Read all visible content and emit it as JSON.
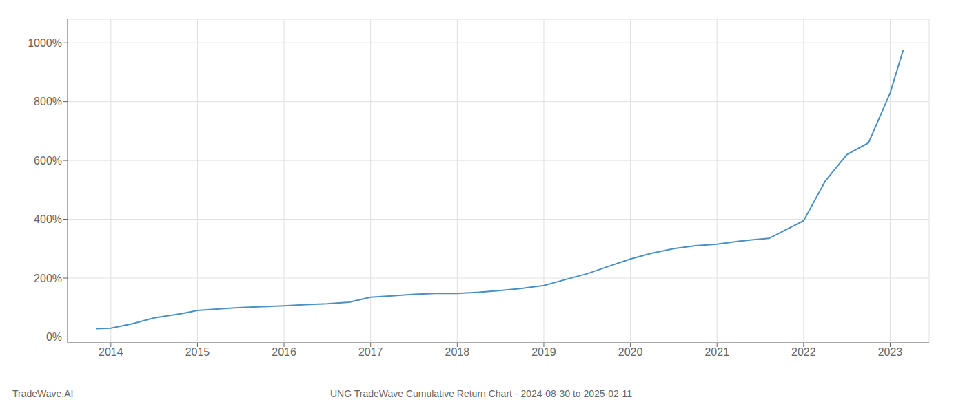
{
  "chart_data": {
    "type": "line",
    "title": "UNG TradeWave Cumulative Return Chart - 2024-08-30 to 2025-02-11",
    "annotations": [
      "TradeWave.AI"
    ],
    "color": "#4a90c4",
    "x": [
      2013.83,
      2014.0,
      2014.25,
      2014.5,
      2014.83,
      2015.0,
      2015.25,
      2015.5,
      2016.0,
      2016.25,
      2016.5,
      2016.75,
      2017.0,
      2017.25,
      2017.5,
      2017.75,
      2018.0,
      2018.25,
      2018.5,
      2018.75,
      2019.0,
      2019.25,
      2019.5,
      2019.75,
      2020.0,
      2020.25,
      2020.5,
      2020.75,
      2021.0,
      2021.25,
      2021.4,
      2021.6,
      2022.0,
      2022.25,
      2022.5,
      2022.75,
      2023.0,
      2023.15
    ],
    "values": [
      28,
      30,
      45,
      65,
      80,
      90,
      95,
      100,
      106,
      110,
      113,
      118,
      135,
      140,
      145,
      148,
      148,
      152,
      158,
      165,
      175,
      195,
      215,
      240,
      265,
      285,
      300,
      310,
      315,
      325,
      330,
      335,
      395,
      530,
      620,
      660,
      830,
      975
    ],
    "xlim": [
      2013.5,
      2023.45
    ],
    "xticks": [
      2014,
      2015,
      2016,
      2017,
      2018,
      2019,
      2020,
      2021,
      2022,
      2023
    ],
    "ylim": [
      -20,
      1080
    ],
    "yticks": [
      {
        "value": 0,
        "label": "0%"
      },
      {
        "value": 200,
        "label": "200%"
      },
      {
        "value": 400,
        "label": "400%"
      },
      {
        "value": 600,
        "label": "600%"
      },
      {
        "value": 800,
        "label": "800%"
      },
      {
        "value": 1000,
        "label": "1000%"
      }
    ],
    "grid": true
  }
}
